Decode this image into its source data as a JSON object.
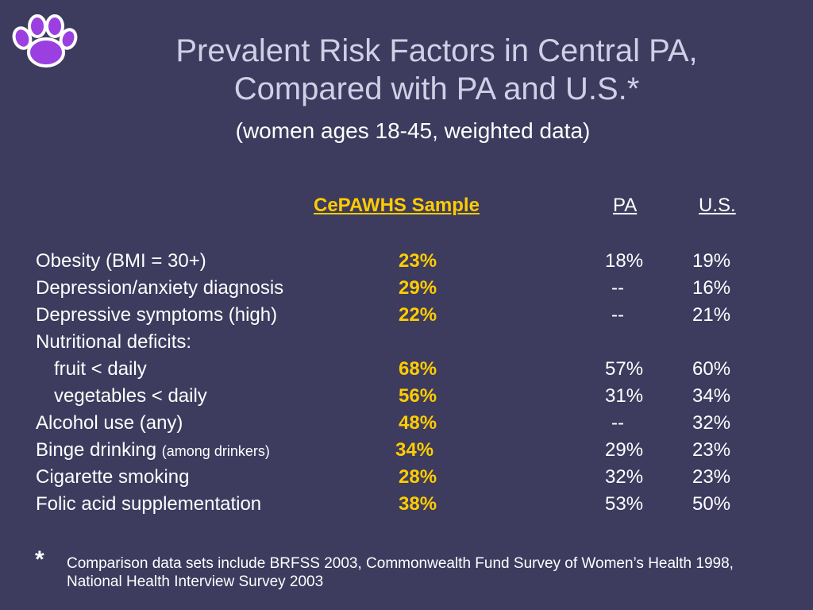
{
  "slide": {
    "title_line1": "Prevalent Risk Factors in Central PA,",
    "title_line2": "Compared with PA and U.S.*",
    "subtitle": "(women ages 18-45, weighted data)",
    "logo_icon": "paw-print-icon",
    "colors": {
      "background": "#3d3b5e",
      "title": "#cfd0e6",
      "highlight": "#ffcc00",
      "paw": "#9b3fe0"
    }
  },
  "table": {
    "headers": {
      "sample": "CePAWHS Sample",
      "pa": "PA",
      "us": "U.S."
    },
    "rows": [
      {
        "label": "Obesity (BMI = 30+)",
        "sample": "23%",
        "pa": "18%",
        "us": "19%"
      },
      {
        "label": "Depression/anxiety diagnosis",
        "sample": "29%",
        "pa": "--",
        "us": "16%"
      },
      {
        "label": "Depressive symptoms (high)",
        "sample": "22%",
        "pa": "--",
        "us": "21%"
      },
      {
        "label": "Nutritional deficits:",
        "sample": "",
        "pa": "",
        "us": ""
      },
      {
        "label": "fruit < daily",
        "sample": "68%",
        "pa": "57%",
        "us": "60%"
      },
      {
        "label": "vegetables < daily",
        "sample": "56%",
        "pa": "31%",
        "us": "34%"
      },
      {
        "label": "Alcohol use (any)",
        "sample": "48%",
        "pa": "--",
        "us": "32%"
      },
      {
        "label": "Binge drinking",
        "label_small": "(among drinkers)",
        "sample": "34%",
        "pa": "29%",
        "us": "23%"
      },
      {
        "label": "Cigarette smoking",
        "sample": "28%",
        "pa": "32%",
        "us": "23%"
      },
      {
        "label": "Folic acid supplementation",
        "sample": "38%",
        "pa": "53%",
        "us": "50%"
      }
    ]
  },
  "footnote": {
    "marker": "*",
    "text": "Comparison data sets include BRFSS 2003, Commonwealth Fund Survey of Women’s Health 1998, National Health Interview Survey 2003"
  }
}
